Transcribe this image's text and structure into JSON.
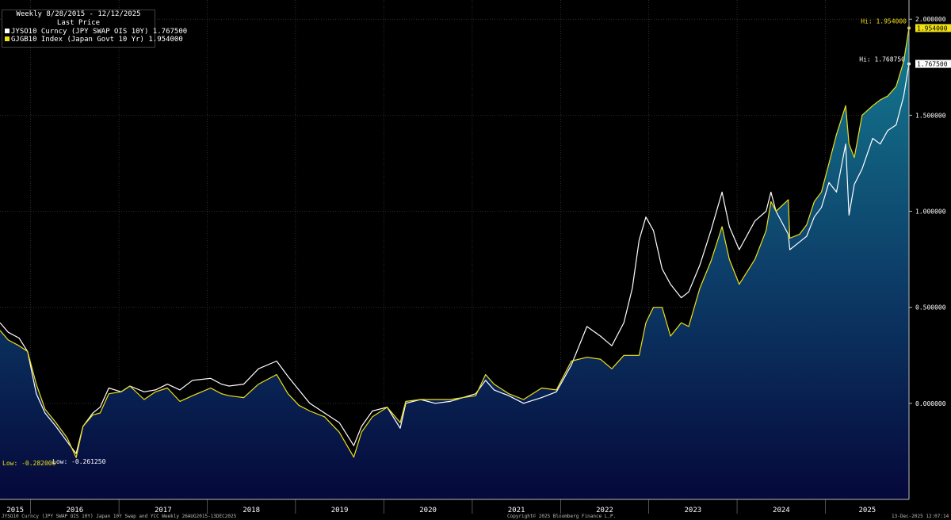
{
  "chart_data": {
    "type": "line",
    "title": "Weekly 8/28/2015 - 12/12/2025",
    "subtitle": "Last Price",
    "ylim": [
      -0.5,
      2.1
    ],
    "yticks": [
      0.0,
      0.5,
      1.0,
      1.5,
      2.0
    ],
    "ytick_labels": [
      "0.000000",
      "0.500000",
      "1.000000",
      "1.500000",
      "2.000000"
    ],
    "xlim": [
      "2015-08-28",
      "2025-12-12"
    ],
    "xtick_labels": [
      "2015",
      "2016",
      "2017",
      "2018",
      "2019",
      "2020",
      "2021",
      "2022",
      "2023",
      "2024",
      "2025"
    ],
    "grid": true,
    "legend_position": "top-left",
    "series": [
      {
        "name": "JYSO10 Curncy (JPY SWAP OIS 10Y) 1.767500",
        "color": "#ffffff",
        "last_value": 1.7675,
        "last_label": "1.767500",
        "high_label": "Hi: 1.768750",
        "low_label": "Low: -0.261250",
        "points": [
          [
            "2015-08-28",
            0.42
          ],
          [
            "2015-10-01",
            0.37
          ],
          [
            "2015-11-15",
            0.34
          ],
          [
            "2015-12-20",
            0.27
          ],
          [
            "2016-01-25",
            0.05
          ],
          [
            "2016-03-01",
            -0.05
          ],
          [
            "2016-04-15",
            -0.12
          ],
          [
            "2016-06-01",
            -0.2
          ],
          [
            "2016-07-08",
            -0.2613
          ],
          [
            "2016-08-05",
            -0.12
          ],
          [
            "2016-09-15",
            -0.05
          ],
          [
            "2016-10-15",
            -0.02
          ],
          [
            "2016-11-20",
            0.08
          ],
          [
            "2017-01-10",
            0.06
          ],
          [
            "2017-02-15",
            0.09
          ],
          [
            "2017-04-15",
            0.06
          ],
          [
            "2017-06-01",
            0.07
          ],
          [
            "2017-07-20",
            0.1
          ],
          [
            "2017-09-10",
            0.07
          ],
          [
            "2017-11-01",
            0.12
          ],
          [
            "2018-01-15",
            0.13
          ],
          [
            "2018-03-01",
            0.1
          ],
          [
            "2018-04-01",
            0.09
          ],
          [
            "2018-06-01",
            0.1
          ],
          [
            "2018-08-01",
            0.18
          ],
          [
            "2018-10-15",
            0.22
          ],
          [
            "2018-12-01",
            0.14
          ],
          [
            "2019-01-15",
            0.07
          ],
          [
            "2019-03-01",
            0.0
          ],
          [
            "2019-05-01",
            -0.05
          ],
          [
            "2019-07-01",
            -0.1
          ],
          [
            "2019-08-30",
            -0.22
          ],
          [
            "2019-10-01",
            -0.12
          ],
          [
            "2019-11-15",
            -0.04
          ],
          [
            "2020-01-15",
            -0.02
          ],
          [
            "2020-03-09",
            -0.13
          ],
          [
            "2020-04-01",
            0.0
          ],
          [
            "2020-06-01",
            0.02
          ],
          [
            "2020-08-01",
            0.0
          ],
          [
            "2020-10-01",
            0.01
          ],
          [
            "2021-01-15",
            0.05
          ],
          [
            "2021-02-25",
            0.12
          ],
          [
            "2021-04-01",
            0.07
          ],
          [
            "2021-06-01",
            0.04
          ],
          [
            "2021-08-01",
            0.0
          ],
          [
            "2021-10-15",
            0.03
          ],
          [
            "2021-12-15",
            0.06
          ],
          [
            "2022-02-15",
            0.2
          ],
          [
            "2022-04-20",
            0.4
          ],
          [
            "2022-06-15",
            0.35
          ],
          [
            "2022-08-01",
            0.3
          ],
          [
            "2022-09-20",
            0.42
          ],
          [
            "2022-10-25",
            0.6
          ],
          [
            "2022-11-22",
            0.85
          ],
          [
            "2022-12-20",
            0.97
          ],
          [
            "2023-01-20",
            0.9
          ],
          [
            "2023-02-25",
            0.7
          ],
          [
            "2023-04-01",
            0.62
          ],
          [
            "2023-05-15",
            0.55
          ],
          [
            "2023-06-15",
            0.58
          ],
          [
            "2023-07-31",
            0.72
          ],
          [
            "2023-09-15",
            0.9
          ],
          [
            "2023-10-31",
            1.1
          ],
          [
            "2023-11-30",
            0.92
          ],
          [
            "2024-01-10",
            0.8
          ],
          [
            "2024-03-15",
            0.95
          ],
          [
            "2024-04-30",
            1.0
          ],
          [
            "2024-05-20",
            1.1
          ],
          [
            "2024-06-10",
            1.0
          ],
          [
            "2024-07-31",
            0.88
          ],
          [
            "2024-08-06",
            0.8
          ],
          [
            "2024-09-15",
            0.84
          ],
          [
            "2024-10-15",
            0.87
          ],
          [
            "2024-11-15",
            0.97
          ],
          [
            "2024-12-15",
            1.02
          ],
          [
            "2025-01-15",
            1.15
          ],
          [
            "2025-02-15",
            1.1
          ],
          [
            "2025-03-25",
            1.35
          ],
          [
            "2025-04-08",
            0.98
          ],
          [
            "2025-04-30",
            1.14
          ],
          [
            "2025-06-01",
            1.22
          ],
          [
            "2025-07-15",
            1.38
          ],
          [
            "2025-08-15",
            1.35
          ],
          [
            "2025-09-15",
            1.42
          ],
          [
            "2025-10-20",
            1.45
          ],
          [
            "2025-11-20",
            1.6
          ],
          [
            "2025-12-12",
            1.7675
          ]
        ]
      },
      {
        "name": "GJGB10 Index (Japan Govt 10 Yr)  1.954000",
        "color": "#f0e014",
        "last_value": 1.954,
        "last_label": "1.954000",
        "high_label": "Hi: 1.954000",
        "low_label": "Low: -0.282000",
        "points": [
          [
            "2015-08-28",
            0.38
          ],
          [
            "2015-10-01",
            0.33
          ],
          [
            "2015-11-15",
            0.3
          ],
          [
            "2015-12-20",
            0.27
          ],
          [
            "2016-01-25",
            0.1
          ],
          [
            "2016-03-01",
            -0.03
          ],
          [
            "2016-04-15",
            -0.1
          ],
          [
            "2016-06-01",
            -0.18
          ],
          [
            "2016-07-08",
            -0.282
          ],
          [
            "2016-08-05",
            -0.12
          ],
          [
            "2016-09-15",
            -0.06
          ],
          [
            "2016-10-15",
            -0.05
          ],
          [
            "2016-11-20",
            0.05
          ],
          [
            "2017-01-10",
            0.06
          ],
          [
            "2017-02-15",
            0.09
          ],
          [
            "2017-04-15",
            0.02
          ],
          [
            "2017-06-01",
            0.06
          ],
          [
            "2017-07-20",
            0.08
          ],
          [
            "2017-09-10",
            0.01
          ],
          [
            "2017-11-01",
            0.04
          ],
          [
            "2018-01-15",
            0.08
          ],
          [
            "2018-03-01",
            0.05
          ],
          [
            "2018-04-01",
            0.04
          ],
          [
            "2018-06-01",
            0.03
          ],
          [
            "2018-08-01",
            0.1
          ],
          [
            "2018-10-15",
            0.15
          ],
          [
            "2018-12-01",
            0.05
          ],
          [
            "2019-01-15",
            -0.01
          ],
          [
            "2019-03-01",
            -0.04
          ],
          [
            "2019-05-01",
            -0.07
          ],
          [
            "2019-07-01",
            -0.15
          ],
          [
            "2019-08-30",
            -0.28
          ],
          [
            "2019-10-01",
            -0.15
          ],
          [
            "2019-11-15",
            -0.07
          ],
          [
            "2020-01-15",
            -0.02
          ],
          [
            "2020-03-09",
            -0.1
          ],
          [
            "2020-04-01",
            0.01
          ],
          [
            "2020-06-01",
            0.02
          ],
          [
            "2020-08-01",
            0.02
          ],
          [
            "2020-10-01",
            0.02
          ],
          [
            "2021-01-15",
            0.04
          ],
          [
            "2021-02-25",
            0.15
          ],
          [
            "2021-04-01",
            0.1
          ],
          [
            "2021-06-01",
            0.05
          ],
          [
            "2021-08-01",
            0.02
          ],
          [
            "2021-10-15",
            0.08
          ],
          [
            "2021-12-15",
            0.07
          ],
          [
            "2022-02-15",
            0.22
          ],
          [
            "2022-04-20",
            0.24
          ],
          [
            "2022-06-15",
            0.23
          ],
          [
            "2022-08-01",
            0.18
          ],
          [
            "2022-09-20",
            0.25
          ],
          [
            "2022-10-25",
            0.25
          ],
          [
            "2022-11-22",
            0.25
          ],
          [
            "2022-12-20",
            0.42
          ],
          [
            "2023-01-20",
            0.5
          ],
          [
            "2023-02-25",
            0.5
          ],
          [
            "2023-04-01",
            0.35
          ],
          [
            "2023-05-15",
            0.42
          ],
          [
            "2023-06-15",
            0.4
          ],
          [
            "2023-07-31",
            0.6
          ],
          [
            "2023-09-15",
            0.74
          ],
          [
            "2023-10-31",
            0.92
          ],
          [
            "2023-11-30",
            0.75
          ],
          [
            "2024-01-10",
            0.62
          ],
          [
            "2024-03-15",
            0.75
          ],
          [
            "2024-04-30",
            0.9
          ],
          [
            "2024-05-20",
            1.05
          ],
          [
            "2024-06-10",
            1.0
          ],
          [
            "2024-07-31",
            1.06
          ],
          [
            "2024-08-06",
            0.86
          ],
          [
            "2024-09-15",
            0.88
          ],
          [
            "2024-10-15",
            0.93
          ],
          [
            "2024-11-15",
            1.05
          ],
          [
            "2024-12-15",
            1.1
          ],
          [
            "2025-01-15",
            1.25
          ],
          [
            "2025-02-15",
            1.4
          ],
          [
            "2025-03-25",
            1.55
          ],
          [
            "2025-04-08",
            1.35
          ],
          [
            "2025-04-30",
            1.28
          ],
          [
            "2025-06-01",
            1.5
          ],
          [
            "2025-07-15",
            1.55
          ],
          [
            "2025-08-15",
            1.58
          ],
          [
            "2025-09-15",
            1.6
          ],
          [
            "2025-10-20",
            1.65
          ],
          [
            "2025-11-20",
            1.78
          ],
          [
            "2025-12-12",
            1.954
          ]
        ]
      }
    ]
  },
  "footer": {
    "left": "JYSO10 Curncy (JPY SWAP OIS 10Y) Japan 10Y Swap and YCC Weekly 26AUG2015-13DEC2025",
    "center": "Copyright© 2025 Bloomberg Finance L.P.",
    "right": "13-Dec-2025 12:07:14"
  }
}
